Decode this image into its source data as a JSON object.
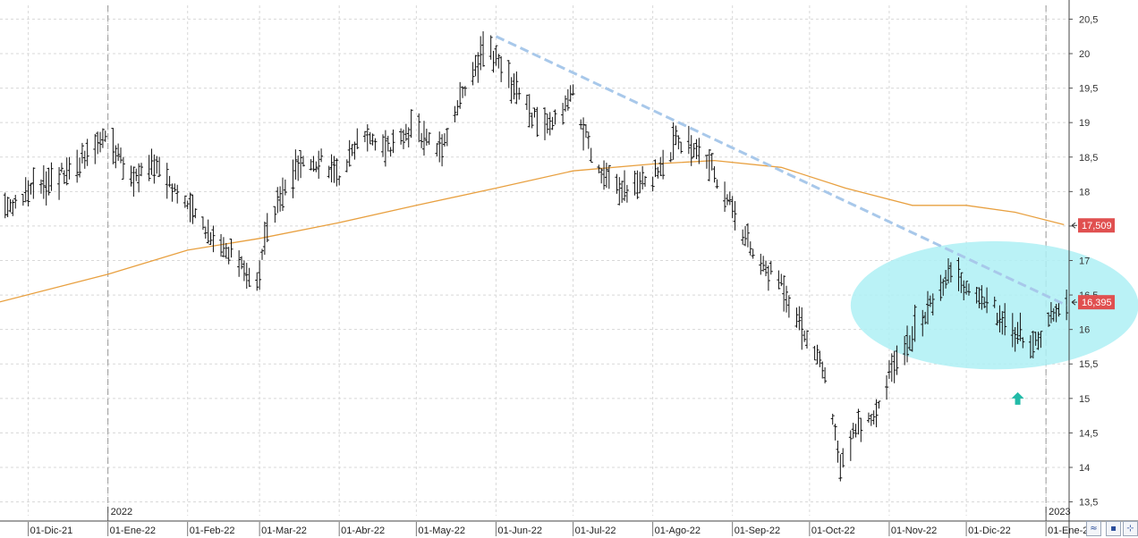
{
  "chart_data": {
    "type": "ohlc",
    "y_axis": {
      "position": "right",
      "ticks": [
        "20,5",
        "20",
        "19,5",
        "19",
        "18,5",
        "18",
        "17,5",
        "17",
        "16,5",
        "16",
        "15,5",
        "15",
        "14,5",
        "14",
        "13,5"
      ],
      "tick_values": [
        20.5,
        20,
        19.5,
        19,
        18.5,
        18,
        17.5,
        17,
        16.5,
        16,
        15.5,
        15,
        14.5,
        14,
        13.5
      ],
      "range": [
        13.3,
        20.7
      ]
    },
    "x_axis": {
      "tick_labels": [
        "01-Dic-21",
        "01-Ene-22",
        "01-Feb-22",
        "01-Mar-22",
        "01-Abr-22",
        "01-May-22",
        "01-Jun-22",
        "01-Jul-22",
        "01-Ago-22",
        "01-Sep-22",
        "01-Oct-22",
        "01-Nov-22",
        "01-Dic-22",
        "01-Ene-2"
      ],
      "tick_dates": [
        "2021-12-01",
        "2022-01-01",
        "2022-02-01",
        "2022-03-01",
        "2022-04-01",
        "2022-05-01",
        "2022-06-01",
        "2022-07-01",
        "2022-08-01",
        "2022-09-01",
        "2022-10-01",
        "2022-11-01",
        "2022-12-01",
        "2023-01-01"
      ],
      "year_labels": [
        {
          "label": "2022",
          "date": "2022-01-01"
        },
        {
          "label": "2023",
          "date": "2023-01-01"
        }
      ],
      "range": [
        "2021-11-20",
        "2023-01-10"
      ]
    },
    "grid": true,
    "price_path": [
      [
        "2021-11-20",
        17.7
      ],
      [
        "2021-12-05",
        18.1
      ],
      [
        "2021-12-20",
        18.4
      ],
      [
        "2022-01-01",
        18.8
      ],
      [
        "2022-01-10",
        18.2
      ],
      [
        "2022-01-20",
        18.4
      ],
      [
        "2022-02-01",
        17.8
      ],
      [
        "2022-02-10",
        17.4
      ],
      [
        "2022-02-20",
        17.0
      ],
      [
        "2022-02-28",
        16.7
      ],
      [
        "2022-03-05",
        17.6
      ],
      [
        "2022-03-15",
        18.3
      ],
      [
        "2022-03-25",
        18.5
      ],
      [
        "2022-04-01",
        18.2
      ],
      [
        "2022-04-10",
        18.9
      ],
      [
        "2022-04-20",
        18.6
      ],
      [
        "2022-05-01",
        18.9
      ],
      [
        "2022-05-10",
        18.6
      ],
      [
        "2022-05-20",
        19.5
      ],
      [
        "2022-05-28",
        20.1
      ],
      [
        "2022-06-05",
        19.7
      ],
      [
        "2022-06-15",
        19.1
      ],
      [
        "2022-06-22",
        18.9
      ],
      [
        "2022-07-01",
        19.4
      ],
      [
        "2022-07-10",
        18.3
      ],
      [
        "2022-07-20",
        18.0
      ],
      [
        "2022-08-01",
        18.2
      ],
      [
        "2022-08-10",
        18.7
      ],
      [
        "2022-08-20",
        18.6
      ],
      [
        "2022-09-01",
        17.8
      ],
      [
        "2022-09-10",
        17.0
      ],
      [
        "2022-09-20",
        16.7
      ],
      [
        "2022-10-01",
        15.8
      ],
      [
        "2022-10-08",
        15.2
      ],
      [
        "2022-10-13",
        14.0
      ],
      [
        "2022-10-20",
        14.6
      ],
      [
        "2022-10-27",
        14.8
      ],
      [
        "2022-11-05",
        15.7
      ],
      [
        "2022-11-15",
        16.2
      ],
      [
        "2022-11-25",
        16.9
      ],
      [
        "2022-12-01",
        16.6
      ],
      [
        "2022-12-10",
        16.4
      ],
      [
        "2022-12-18",
        16.0
      ],
      [
        "2022-12-28",
        15.8
      ],
      [
        "2023-01-05",
        16.3
      ],
      [
        "2023-01-09",
        16.4
      ]
    ],
    "moving_average": {
      "color": "#e8a040",
      "points": [
        [
          "2021-11-20",
          16.4
        ],
        [
          "2022-01-01",
          16.8
        ],
        [
          "2022-02-01",
          17.15
        ],
        [
          "2022-03-01",
          17.32
        ],
        [
          "2022-04-01",
          17.55
        ],
        [
          "2022-05-01",
          17.8
        ],
        [
          "2022-06-01",
          18.05
        ],
        [
          "2022-07-01",
          18.3
        ],
        [
          "2022-08-01",
          18.4
        ],
        [
          "2022-08-25",
          18.45
        ],
        [
          "2022-09-20",
          18.35
        ],
        [
          "2022-10-15",
          18.05
        ],
        [
          "2022-11-10",
          17.8
        ],
        [
          "2022-12-01",
          17.8
        ],
        [
          "2022-12-20",
          17.7
        ],
        [
          "2023-01-08",
          17.52
        ]
      ]
    },
    "trendline": {
      "color": "#a8c8ea",
      "style": "dashed",
      "points": [
        [
          "2022-06-01",
          20.25
        ],
        [
          "2023-01-09",
          16.35
        ]
      ]
    },
    "highlight_ellipse": {
      "color": "#aef0f4",
      "center": [
        "2022-12-12",
        16.35
      ],
      "span_days": 28,
      "span_value": 0.93
    },
    "annotation_arrow": {
      "color": "#22bba8",
      "at": [
        "2022-12-21",
        15.0
      ],
      "direction": "up"
    },
    "last_values": [
      {
        "label": "17,509",
        "value": 17.509,
        "color": "#e05050"
      },
      {
        "label": "16,395",
        "value": 16.395,
        "color": "#e05050"
      }
    ]
  },
  "toolbar": {
    "buttons": [
      {
        "name": "zigzag-icon",
        "glyph": "≈"
      },
      {
        "name": "save-icon",
        "glyph": "▪"
      },
      {
        "name": "crosshair-icon",
        "glyph": "⊹"
      }
    ]
  }
}
